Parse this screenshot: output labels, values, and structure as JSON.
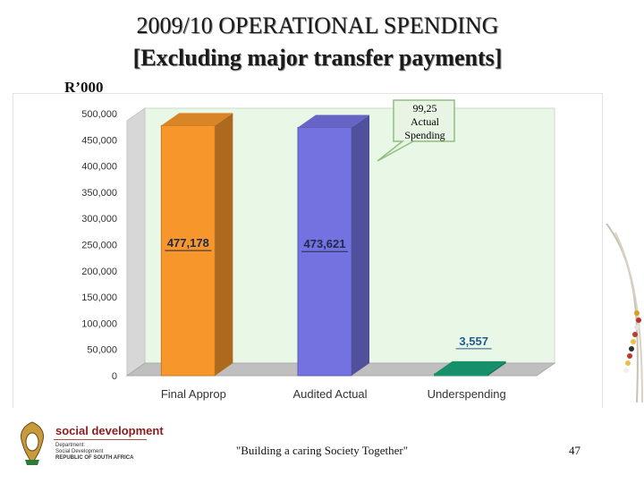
{
  "header": {
    "title_line1": "2009/10 OPERATIONAL SPENDING",
    "title_line2": "[Excluding major transfer payments]",
    "unit_label": "R’000"
  },
  "callout": {
    "line1": "99,25",
    "line2": "Actual",
    "line3": "Spending"
  },
  "chart_data": {
    "type": "bar",
    "categories": [
      "Final Approp",
      "Audited Actual",
      "Underspending"
    ],
    "values": [
      477178,
      473621,
      3557
    ],
    "value_labels": [
      "477,178",
      "473,621",
      "3,557"
    ],
    "colors": [
      "#f7962b",
      "#7472e0",
      "#19a47a"
    ],
    "ylim": [
      0,
      500000
    ],
    "ytick_step": 50000,
    "ytick_labels": [
      "0",
      "50,000",
      "100,000",
      "150,000",
      "200,000",
      "250,000",
      "300,000",
      "350,000",
      "400,000",
      "450,000",
      "500,000"
    ],
    "grid": false,
    "legend": "none",
    "title": "",
    "xlabel": "",
    "ylabel": ""
  },
  "footer": {
    "brand": "social development",
    "dept_line1": "Department:",
    "dept_line2": "Social Development",
    "dept_line3": "REPUBLIC OF SOUTH AFRICA",
    "slogan": "\"Building a caring Society Together\"",
    "page_number": "47"
  }
}
